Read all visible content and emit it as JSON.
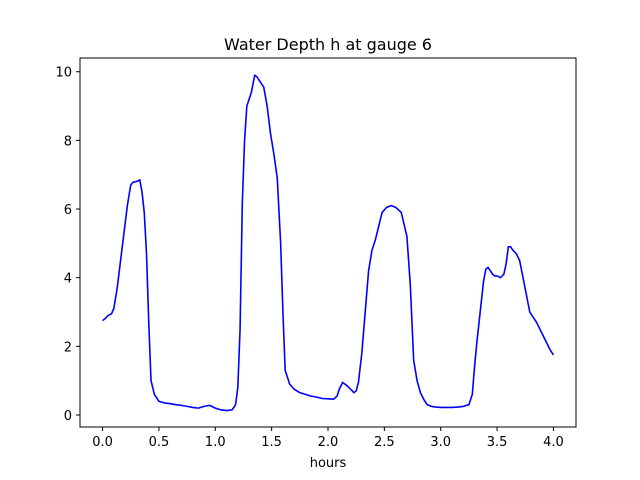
{
  "chart_data": {
    "type": "line",
    "title": "Water Depth h at gauge 6",
    "xlabel": "hours",
    "ylabel": "",
    "xlim": [
      -0.2,
      4.2
    ],
    "ylim": [
      -0.35,
      10.4
    ],
    "grid": false,
    "xticks": [
      0.0,
      0.5,
      1.0,
      1.5,
      2.0,
      2.5,
      3.0,
      3.5,
      4.0
    ],
    "xtick_labels": [
      "0.0",
      "0.5",
      "1.0",
      "1.5",
      "2.0",
      "2.5",
      "3.0",
      "3.5",
      "4.0"
    ],
    "yticks": [
      0,
      2,
      4,
      6,
      8,
      10
    ],
    "ytick_labels": [
      "0",
      "2",
      "4",
      "6",
      "8",
      "10"
    ],
    "colors": {
      "line": "#0000ff",
      "axes": "#000000"
    },
    "series": [
      {
        "x": [
          0.0,
          0.02,
          0.05,
          0.08,
          0.1,
          0.13,
          0.16,
          0.19,
          0.22,
          0.25,
          0.27,
          0.3,
          0.33,
          0.35,
          0.37,
          0.39,
          0.41,
          0.43,
          0.46,
          0.5,
          0.55,
          0.6,
          0.65,
          0.7,
          0.75,
          0.8,
          0.85,
          0.9,
          0.95,
          1.0,
          1.05,
          1.1,
          1.15,
          1.18,
          1.2,
          1.22,
          1.24,
          1.26,
          1.28,
          1.3,
          1.32,
          1.35,
          1.37,
          1.4,
          1.43,
          1.46,
          1.49,
          1.52,
          1.55,
          1.58,
          1.6,
          1.62,
          1.64,
          1.66,
          1.7,
          1.75,
          1.8,
          1.85,
          1.9,
          1.95,
          2.0,
          2.05,
          2.08,
          2.1,
          2.13,
          2.15,
          2.17,
          2.2,
          2.23,
          2.25,
          2.27,
          2.3,
          2.33,
          2.36,
          2.39,
          2.42,
          2.45,
          2.48,
          2.52,
          2.56,
          2.6,
          2.65,
          2.7,
          2.73,
          2.76,
          2.79,
          2.82,
          2.85,
          2.88,
          2.92,
          2.96,
          3.0,
          3.05,
          3.1,
          3.15,
          3.2,
          3.25,
          3.28,
          3.3,
          3.32,
          3.35,
          3.38,
          3.4,
          3.42,
          3.44,
          3.46,
          3.48,
          3.5,
          3.53,
          3.56,
          3.58,
          3.6,
          3.62,
          3.64,
          3.67,
          3.7,
          3.73,
          3.76,
          3.79,
          3.82,
          3.85,
          3.88,
          3.91,
          3.94,
          3.97,
          4.0
        ],
        "y": [
          2.75,
          2.8,
          2.9,
          2.95,
          3.1,
          3.7,
          4.5,
          5.3,
          6.1,
          6.7,
          6.78,
          6.8,
          6.85,
          6.5,
          5.9,
          4.7,
          2.7,
          1.0,
          0.6,
          0.4,
          0.35,
          0.33,
          0.3,
          0.28,
          0.25,
          0.22,
          0.2,
          0.25,
          0.28,
          0.2,
          0.15,
          0.13,
          0.15,
          0.3,
          0.8,
          2.5,
          6.2,
          8.0,
          9.0,
          9.2,
          9.4,
          9.9,
          9.85,
          9.7,
          9.55,
          9.0,
          8.2,
          7.6,
          6.9,
          5.0,
          3.0,
          1.3,
          1.1,
          0.9,
          0.75,
          0.65,
          0.6,
          0.55,
          0.52,
          0.48,
          0.47,
          0.46,
          0.55,
          0.75,
          0.95,
          0.9,
          0.85,
          0.75,
          0.65,
          0.7,
          0.95,
          1.8,
          3.0,
          4.2,
          4.8,
          5.1,
          5.5,
          5.9,
          6.05,
          6.1,
          6.05,
          5.9,
          5.2,
          3.8,
          1.6,
          1.0,
          0.65,
          0.45,
          0.3,
          0.25,
          0.23,
          0.22,
          0.22,
          0.22,
          0.23,
          0.25,
          0.3,
          0.6,
          1.4,
          2.1,
          3.0,
          3.9,
          4.25,
          4.3,
          4.2,
          4.1,
          4.05,
          4.05,
          4.0,
          4.1,
          4.4,
          4.9,
          4.9,
          4.8,
          4.7,
          4.5,
          4.0,
          3.5,
          3.0,
          2.85,
          2.7,
          2.5,
          2.3,
          2.1,
          1.9,
          1.75
        ]
      }
    ]
  }
}
